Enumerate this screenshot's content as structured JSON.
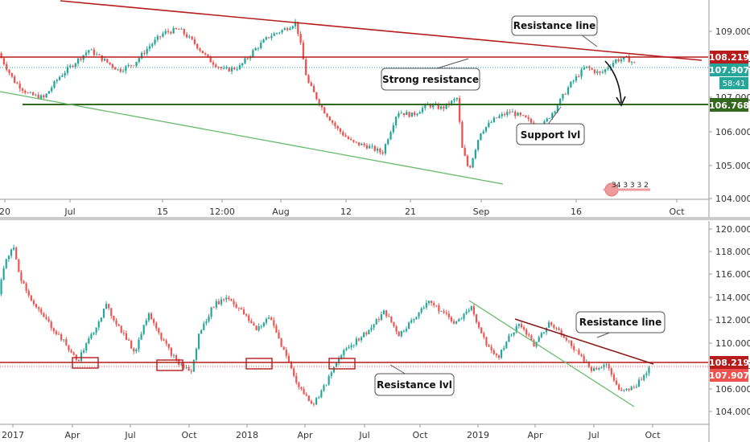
{
  "chart_data": [
    {
      "type": "line",
      "panel": "top",
      "x_ticks": [
        "20",
        "Jul",
        "15",
        "12:00",
        "Aug",
        "12",
        "21",
        "Sep",
        "16",
        "Oct"
      ],
      "y_ticks": [
        "109.000",
        "108.000",
        "107.000",
        "106.000",
        "105.000",
        "104.000"
      ],
      "ylim": [
        103.95,
        109.75
      ],
      "grid": false,
      "price_path": [
        [
          0,
          108.2
        ],
        [
          0.02,
          107.4
        ],
        [
          0.04,
          107.0
        ],
        [
          0.06,
          106.9
        ],
        [
          0.08,
          107.5
        ],
        [
          0.1,
          107.9
        ],
        [
          0.12,
          108.3
        ],
        [
          0.14,
          108.0
        ],
        [
          0.16,
          107.7
        ],
        [
          0.18,
          107.9
        ],
        [
          0.2,
          108.4
        ],
        [
          0.22,
          108.8
        ],
        [
          0.24,
          108.9
        ],
        [
          0.26,
          108.5
        ],
        [
          0.28,
          108.0
        ],
        [
          0.3,
          107.7
        ],
        [
          0.32,
          107.8
        ],
        [
          0.34,
          108.3
        ],
        [
          0.36,
          108.7
        ],
        [
          0.38,
          108.9
        ],
        [
          0.395,
          109.1
        ],
        [
          0.4,
          108.6
        ],
        [
          0.41,
          107.4
        ],
        [
          0.43,
          106.6
        ],
        [
          0.45,
          106.0
        ],
        [
          0.47,
          105.6
        ],
        [
          0.49,
          105.5
        ],
        [
          0.51,
          105.3
        ],
        [
          0.53,
          106.5
        ],
        [
          0.55,
          106.4
        ],
        [
          0.57,
          106.7
        ],
        [
          0.59,
          106.6
        ],
        [
          0.61,
          106.9
        ],
        [
          0.615,
          105.5
        ],
        [
          0.625,
          104.8
        ],
        [
          0.64,
          105.9
        ],
        [
          0.66,
          106.3
        ],
        [
          0.68,
          106.5
        ],
        [
          0.7,
          106.3
        ],
        [
          0.72,
          106.0
        ],
        [
          0.74,
          106.6
        ],
        [
          0.76,
          107.3
        ],
        [
          0.78,
          107.8
        ],
        [
          0.8,
          107.6
        ],
        [
          0.82,
          108.0
        ],
        [
          0.835,
          108.05
        ],
        [
          0.845,
          107.9
        ]
      ],
      "levels": [
        {
          "value": 108.219,
          "label": "108.219",
          "color": "#b71c1c"
        },
        {
          "value": 107.907,
          "label": "107.907",
          "color": "#26a69a"
        },
        {
          "value": 106.768,
          "label": "106.768",
          "color": "#33691e"
        }
      ],
      "countdown": "58:41",
      "annotations": [
        "Resistance line",
        "Strong resistance",
        "Support lvl"
      ],
      "event_markers": "34 3 3  3  2"
    },
    {
      "type": "line",
      "panel": "bottom",
      "x_ticks": [
        "2017",
        "Apr",
        "Jul",
        "Oct",
        "2018",
        "Apr",
        "Jul",
        "Oct",
        "2019",
        "Apr",
        "Jul",
        "Oct"
      ],
      "y_ticks": [
        "120.000",
        "118.000",
        "116.000",
        "114.000",
        "112.000",
        "110.000",
        "108.000",
        "106.000",
        "104.000"
      ],
      "ylim": [
        103.3,
        120.6
      ],
      "grid": false,
      "price_path": [
        [
          0,
          114.5
        ],
        [
          0.01,
          117.5
        ],
        [
          0.02,
          118.6
        ],
        [
          0.03,
          116.0
        ],
        [
          0.05,
          113.5
        ],
        [
          0.07,
          112.0
        ],
        [
          0.09,
          110.5
        ],
        [
          0.11,
          108.7
        ],
        [
          0.13,
          111.0
        ],
        [
          0.15,
          113.5
        ],
        [
          0.17,
          111.5
        ],
        [
          0.19,
          109.5
        ],
        [
          0.21,
          113.0
        ],
        [
          0.23,
          110.5
        ],
        [
          0.25,
          108.6
        ],
        [
          0.27,
          107.8
        ],
        [
          0.28,
          111.0
        ],
        [
          0.3,
          113.5
        ],
        [
          0.32,
          114.3
        ],
        [
          0.34,
          113.0
        ],
        [
          0.36,
          111.5
        ],
        [
          0.38,
          112.5
        ],
        [
          0.4,
          109.5
        ],
        [
          0.42,
          106.5
        ],
        [
          0.44,
          105.0
        ],
        [
          0.46,
          107.0
        ],
        [
          0.48,
          109.5
        ],
        [
          0.5,
          110.5
        ],
        [
          0.52,
          111.5
        ],
        [
          0.54,
          113.0
        ],
        [
          0.56,
          111.0
        ],
        [
          0.58,
          112.3
        ],
        [
          0.6,
          114.0
        ],
        [
          0.62,
          113.0
        ],
        [
          0.64,
          112.0
        ],
        [
          0.66,
          113.5
        ],
        [
          0.68,
          110.5
        ],
        [
          0.7,
          109.0
        ],
        [
          0.71,
          110.5
        ],
        [
          0.73,
          112.0
        ],
        [
          0.75,
          110.0
        ],
        [
          0.77,
          112.0
        ],
        [
          0.79,
          111.0
        ],
        [
          0.81,
          109.5
        ],
        [
          0.83,
          108.0
        ],
        [
          0.85,
          108.5
        ],
        [
          0.87,
          106.0
        ],
        [
          0.89,
          106.5
        ],
        [
          0.91,
          108.2
        ]
      ],
      "levels": [
        {
          "value": 108.219,
          "label": "108.219",
          "color": "#b71c1c"
        },
        {
          "value": 107.907,
          "label": "107.907",
          "color": "#ef5350"
        }
      ],
      "annotations": [
        "Resistance line",
        "Resistance lvl"
      ]
    }
  ],
  "colors": {
    "up": "#26a69a",
    "down": "#ef5350",
    "resistance": "#b71c1c",
    "support": "#33691e",
    "trend_green": "#66bb6a"
  }
}
